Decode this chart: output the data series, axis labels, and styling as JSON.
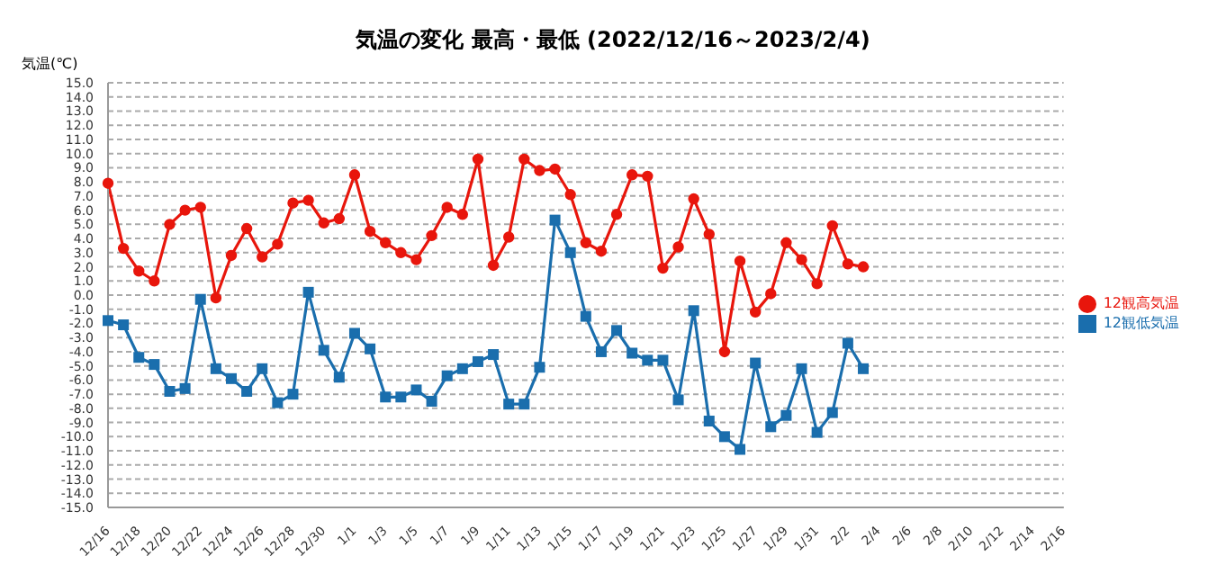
{
  "chart_data": {
    "type": "line",
    "title": "気温の変化  最高・最低 (2022/12/16～2023/2/4)",
    "ylabel": "気温(℃)",
    "categories": [
      "12/16",
      null,
      "12/18",
      null,
      "12/20",
      null,
      "12/22",
      null,
      "12/24",
      null,
      "12/26",
      null,
      "12/28",
      null,
      "12/30",
      null,
      "1/1",
      null,
      "1/3",
      null,
      "1/5",
      null,
      "1/7",
      null,
      "1/9",
      null,
      "1/11",
      null,
      "1/13",
      null,
      "1/15",
      null,
      "1/17",
      null,
      "1/19",
      null,
      "1/21",
      null,
      "1/23",
      null,
      "1/25",
      null,
      "1/27",
      null,
      "1/29",
      null,
      "1/31",
      null,
      "2/2",
      null,
      "2/4",
      null,
      "2/6",
      null,
      "2/8",
      null,
      "2/10",
      null,
      "2/12",
      null,
      "2/14",
      null,
      "2/16"
    ],
    "series": [
      {
        "name": "12観高気温",
        "color": "#e8160c",
        "marker": "circle",
        "values": [
          7.9,
          3.3,
          1.7,
          1.0,
          5.0,
          6.0,
          6.2,
          -0.2,
          2.8,
          4.7,
          2.7,
          3.6,
          6.5,
          6.7,
          5.1,
          5.4,
          8.5,
          4.5,
          3.7,
          3.0,
          2.5,
          4.2,
          6.2,
          5.7,
          9.6,
          2.1,
          4.1,
          9.6,
          8.8,
          8.9,
          7.1,
          3.7,
          3.1,
          5.7,
          8.5,
          8.4,
          1.9,
          3.4,
          6.8,
          4.3,
          -4.0,
          2.4,
          -1.2,
          0.1,
          3.7,
          2.5,
          0.8,
          4.9,
          2.2,
          2.0,
          null,
          null,
          null,
          null,
          null,
          null,
          null,
          null,
          null,
          null,
          null,
          null,
          null
        ]
      },
      {
        "name": "12観低気温",
        "color": "#1a6ead",
        "marker": "square",
        "values": [
          -1.8,
          -2.1,
          -4.4,
          -4.9,
          -6.8,
          -6.6,
          -0.3,
          -5.2,
          -5.9,
          -6.8,
          -5.2,
          -7.6,
          -7.0,
          0.2,
          -3.9,
          -5.8,
          -2.7,
          -3.8,
          -7.2,
          -7.2,
          -6.7,
          -7.5,
          -5.7,
          -5.2,
          -4.7,
          -4.2,
          -7.7,
          -7.7,
          -5.1,
          5.3,
          3.0,
          -1.5,
          -4.0,
          -2.5,
          -4.1,
          -4.6,
          -4.6,
          -7.4,
          -1.1,
          -8.9,
          -10.0,
          -10.9,
          -4.8,
          -9.3,
          -8.5,
          -5.2,
          -9.7,
          -8.3,
          -3.4,
          -5.2,
          null,
          null,
          null,
          null,
          null,
          null,
          null,
          null,
          null,
          null,
          null,
          null,
          null
        ]
      }
    ],
    "ylim": [
      -15,
      15
    ],
    "yticks": [
      {
        "value": 15,
        "label": "15.0"
      },
      {
        "value": 14,
        "label": "14.0"
      },
      {
        "value": 13,
        "label": "13.0"
      },
      {
        "value": 12,
        "label": "12.0"
      },
      {
        "value": 11,
        "label": "11.0"
      },
      {
        "value": 10,
        "label": "10.0"
      },
      {
        "value": 9,
        "label": "9.0"
      },
      {
        "value": 8,
        "label": "8.0"
      },
      {
        "value": 7,
        "label": "7.0"
      },
      {
        "value": 6,
        "label": "6.0"
      },
      {
        "value": 5,
        "label": "5.0"
      },
      {
        "value": 4,
        "label": "4.0"
      },
      {
        "value": 3,
        "label": "3.0"
      },
      {
        "value": 2,
        "label": "2.0"
      },
      {
        "value": 1,
        "label": "1.0"
      },
      {
        "value": 0,
        "label": "0.0"
      },
      {
        "value": -1,
        "label": "-1.0"
      },
      {
        "value": -2,
        "label": "-2.0"
      },
      {
        "value": -3,
        "label": "-3.0"
      },
      {
        "value": -4,
        "label": "-4.0"
      },
      {
        "value": -5,
        "label": "-5.0"
      },
      {
        "value": -6,
        "label": "-6.0"
      },
      {
        "value": -7,
        "label": "-7.0"
      },
      {
        "value": -8,
        "label": "-8.0"
      },
      {
        "value": -9,
        "label": "-9.0"
      },
      {
        "value": -10,
        "label": "-10.0"
      },
      {
        "value": -11,
        "label": "-11.0"
      },
      {
        "value": -12,
        "label": "-12.0"
      },
      {
        "value": -13,
        "label": "-13.0"
      },
      {
        "value": -14,
        "label": "-14.0"
      },
      {
        "value": -15,
        "label": "-15.0"
      }
    ],
    "grid": "y",
    "legend": "right",
    "line_style": "solid"
  }
}
